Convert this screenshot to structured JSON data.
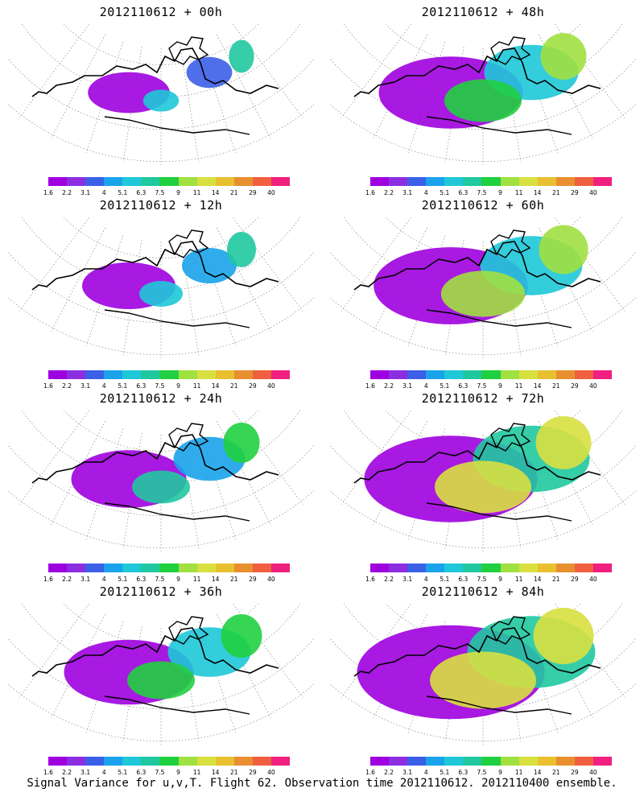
{
  "panels": [
    {
      "title": "2012110612 + 00h",
      "spread": 0.12
    },
    {
      "title": "2012110612 + 48h",
      "spread": 0.55
    },
    {
      "title": "2012110612 + 12h",
      "spread": 0.2
    },
    {
      "title": "2012110612 + 60h",
      "spread": 0.62
    },
    {
      "title": "2012110612 + 24h",
      "spread": 0.35
    },
    {
      "title": "2012110612 + 72h",
      "spread": 0.75
    },
    {
      "title": "2012110612 + 36h",
      "spread": 0.45
    },
    {
      "title": "2012110612 + 84h",
      "spread": 0.85
    }
  ],
  "colorbar": {
    "labels": [
      "1.6",
      "2.2",
      "3.1",
      "4",
      "5.1",
      "6.3",
      "7.5",
      "9",
      "11",
      "14",
      "21",
      "29",
      "40"
    ],
    "colors": [
      "#9f00df",
      "#8c2ee0",
      "#3c5fe8",
      "#1aa3ea",
      "#1ec8d8",
      "#20c8a0",
      "#20d040",
      "#a0e040",
      "#d8e040",
      "#e8c030",
      "#e89030",
      "#f06040",
      "#f02080"
    ]
  },
  "footer": "Signal Variance for u,v,T. Flight 62. Observation time 2012110612. 2012110400 ensemble."
}
